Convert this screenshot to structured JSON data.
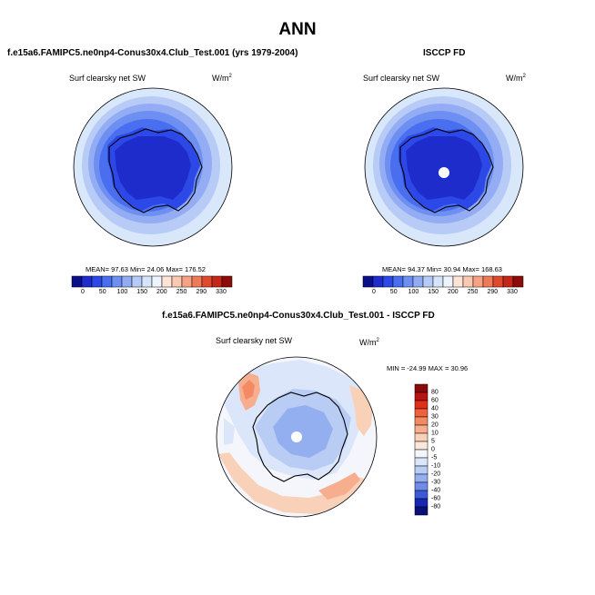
{
  "figure": {
    "title": "ANN"
  },
  "panels": {
    "model": {
      "title": "f.e15a6.FAMIPC5.ne0np4-Conus30x4.Club_Test.001 (yrs 1979-2004)",
      "variable": "Surf clearsky net SW",
      "units_base": "W/m",
      "units_exp": "2",
      "stats": "MEAN= 97.63  Min= 24.06  Max= 176.52"
    },
    "obs": {
      "title": "ISCCP FD",
      "variable": "Surf clearsky net SW",
      "units_base": "W/m",
      "units_exp": "2",
      "stats": "MEAN= 94.37  Min= 30.94  Max= 168.63"
    },
    "diff": {
      "title": "f.e15a6.FAMIPC5.ne0np4-Conus30x4.Club_Test.001 - ISCCP FD",
      "variable": "Surf clearsky net SW",
      "units_base": "W/m",
      "units_exp": "2",
      "stats": "MIN = -24.99 MAX =  30.96"
    }
  },
  "colorbars": {
    "absolute": {
      "labels": [
        "0",
        "50",
        "100",
        "150",
        "200",
        "250",
        "290",
        "330"
      ],
      "colors": [
        "#0a0f8a",
        "#1e2ccc",
        "#2c48e6",
        "#4a6ef0",
        "#6e8ff2",
        "#92acf4",
        "#b6caf6",
        "#d6e4fa",
        "#eef4fc",
        "#fde4d6",
        "#fbc8b0",
        "#f7a284",
        "#f07a58",
        "#e04a2c",
        "#c4261a",
        "#8c0c0a"
      ]
    },
    "difference": {
      "labels": [
        "80",
        "60",
        "40",
        "30",
        "20",
        "10",
        "5",
        "0",
        "-5",
        "-10",
        "-20",
        "-30",
        "-40",
        "-60",
        "-80"
      ],
      "colors": [
        "#8a0a0a",
        "#b81410",
        "#e0301a",
        "#f0603c",
        "#f48a64",
        "#f6ae8e",
        "#f9d0b8",
        "#fbe8dc",
        "#f4f6fc",
        "#dce6fa",
        "#b8ccf4",
        "#94aff0",
        "#6e8ce8",
        "#3c5ad8",
        "#1428b4",
        "#0a0f7a"
      ]
    }
  }
}
